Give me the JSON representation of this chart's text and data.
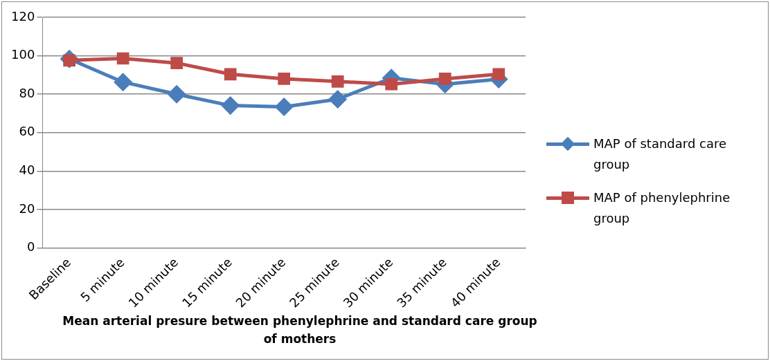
{
  "chart_data": {
    "type": "line",
    "xlabel": "Mean arterial presure between phenylephrine and  standard care group of mothers",
    "categories": [
      "Baseline",
      "5 minute",
      "10 minute",
      "15 minute",
      "20 minute",
      "25 minute",
      "30 minute",
      "35 minute",
      "40 minute"
    ],
    "series": [
      {
        "name": "MAP of standard care group",
        "color": "#4a7ebb",
        "marker": "diamond",
        "values": [
          98.3,
          86.3,
          80,
          74.1,
          73.4,
          77.4,
          88.4,
          85.2,
          87.8
        ]
      },
      {
        "name": "MAP of phenylephrine group",
        "color": "#be4b48",
        "marker": "square",
        "values": [
          97.6,
          98.6,
          96.2,
          90.4,
          88,
          86.6,
          85.2,
          88,
          90.4
        ]
      }
    ],
    "ylim": [
      0,
      120
    ],
    "yticks": [
      0,
      20,
      40,
      60,
      80,
      100,
      120
    ],
    "grid": "y",
    "legend": "right"
  }
}
